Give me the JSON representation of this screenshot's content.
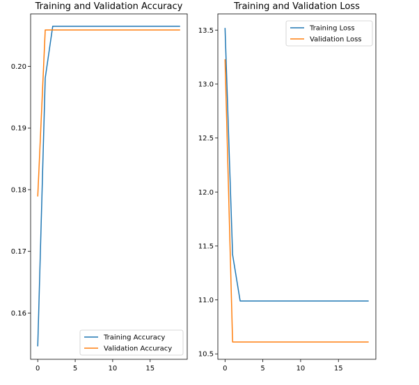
{
  "chart_data": [
    {
      "type": "line",
      "title": "Training and Validation Accuracy",
      "xlabel": "",
      "ylabel": "",
      "xlim": [
        -0.95,
        19.95
      ],
      "ylim": [
        0.1525,
        0.2085
      ],
      "xticks": [
        0,
        5,
        10,
        15
      ],
      "yticks": [
        0.16,
        0.17,
        0.18,
        0.19,
        0.2
      ],
      "ytick_labels": [
        "0.16",
        "0.17",
        "0.18",
        "0.19",
        "0.20"
      ],
      "grid": false,
      "legend_position": "lower-right",
      "x": [
        0,
        1,
        2,
        3,
        4,
        5,
        6,
        7,
        8,
        9,
        10,
        11,
        12,
        13,
        14,
        15,
        16,
        17,
        18,
        19
      ],
      "series": [
        {
          "name": "Training Accuracy",
          "color": "#1f77b4",
          "values": [
            0.1546,
            0.1981,
            0.2065,
            0.2065,
            0.2065,
            0.2065,
            0.2065,
            0.2065,
            0.2065,
            0.2065,
            0.2065,
            0.2065,
            0.2065,
            0.2065,
            0.2065,
            0.2065,
            0.2065,
            0.2065,
            0.2065,
            0.2065
          ]
        },
        {
          "name": "Validation Accuracy",
          "color": "#ff7f0e",
          "values": [
            0.1789,
            0.2059,
            0.2059,
            0.2059,
            0.2059,
            0.2059,
            0.2059,
            0.2059,
            0.2059,
            0.2059,
            0.2059,
            0.2059,
            0.2059,
            0.2059,
            0.2059,
            0.2059,
            0.2059,
            0.2059,
            0.2059,
            0.2059
          ]
        }
      ]
    },
    {
      "type": "line",
      "title": "Training and Validation Loss",
      "xlabel": "",
      "ylabel": "",
      "xlim": [
        -0.95,
        19.95
      ],
      "ylim": [
        10.45,
        13.65
      ],
      "xticks": [
        0,
        5,
        10,
        15
      ],
      "yticks": [
        10.5,
        11.0,
        11.5,
        12.0,
        12.5,
        13.0,
        13.5
      ],
      "ytick_labels": [
        "10.5",
        "11.0",
        "11.5",
        "12.0",
        "12.5",
        "13.0",
        "13.5"
      ],
      "grid": false,
      "legend_position": "upper-right",
      "x": [
        0,
        1,
        2,
        3,
        4,
        5,
        6,
        7,
        8,
        9,
        10,
        11,
        12,
        13,
        14,
        15,
        16,
        17,
        18,
        19
      ],
      "series": [
        {
          "name": "Training Loss",
          "color": "#1f77b4",
          "values": [
            13.52,
            11.42,
            10.99,
            10.99,
            10.99,
            10.99,
            10.99,
            10.99,
            10.99,
            10.99,
            10.99,
            10.99,
            10.99,
            10.99,
            10.99,
            10.99,
            10.99,
            10.99,
            10.99,
            10.99
          ]
        },
        {
          "name": "Validation Loss",
          "color": "#ff7f0e",
          "values": [
            13.23,
            10.61,
            10.61,
            10.61,
            10.61,
            10.61,
            10.61,
            10.61,
            10.61,
            10.61,
            10.61,
            10.61,
            10.61,
            10.61,
            10.61,
            10.61,
            10.61,
            10.61,
            10.61,
            10.61
          ]
        }
      ]
    }
  ]
}
